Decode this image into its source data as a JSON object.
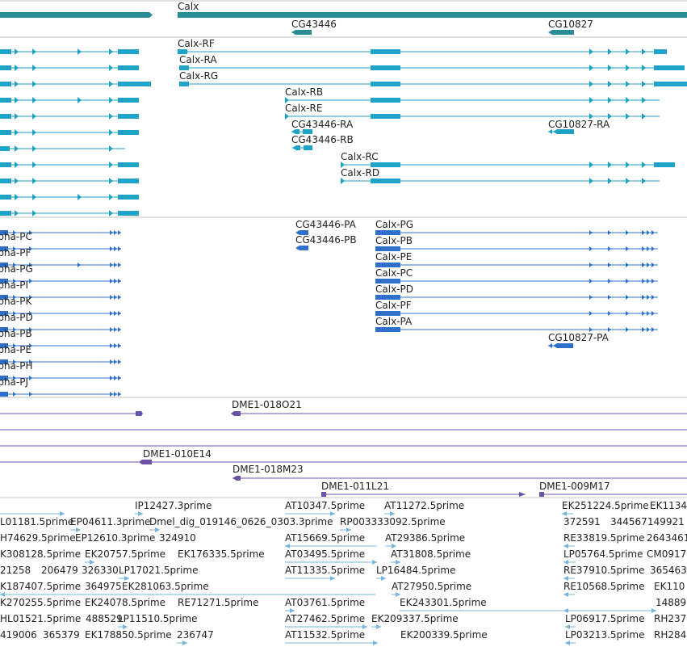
{
  "colors": {
    "gene": "#2a8c94",
    "mrna": "#1ea3c7",
    "protein": "#2f6fcc",
    "clone": "#6b52a8",
    "est": "#78b4dc",
    "divider": "#c0c0c0"
  },
  "genes": {
    "calx": "Calx",
    "cg43446": "CG43446",
    "cg10827": "CG10827"
  },
  "transcripts": {
    "calx_rf": "Calx-RF",
    "calx_ra": "Calx-RA",
    "calx_rg": "Calx-RG",
    "calx_rb": "Calx-RB",
    "calx_re": "Calx-RE",
    "cg43446_ra": "CG43446-RA",
    "cg43446_rb": "CG43446-RB",
    "cg10827_ra": "CG10827-RA",
    "calx_rc": "Calx-RC",
    "calx_rd": "Calx-RD"
  },
  "proteins": {
    "left": [
      "lpha-PC",
      "lpha-PF",
      "lpha-PG",
      "lpha-PI",
      "lpha-PK",
      "lpha-PD",
      "lpha-PB",
      "lpha-PE",
      "lpha-PH",
      "lpha-PJ"
    ],
    "cg43446_pa": "CG43446-PA",
    "cg43446_pb": "CG43446-PB",
    "calx": [
      "Calx-PG",
      "Calx-PB",
      "Calx-PE",
      "Calx-PC",
      "Calx-PD",
      "Calx-PF",
      "Calx-PA"
    ],
    "cg10827_pa": "CG10827-PA"
  },
  "clones": {
    "c1": "DME1-018O21",
    "c2": "DME1-010E14",
    "c3": "DME1-018M23",
    "c4": "DME1-011L21",
    "c5": "DME1-009M17"
  },
  "ests": {
    "r0": [
      "IP12427.3prime",
      "AT10347.5prime",
      "AT11272.5prime",
      "EK251224.5prime",
      "EK1134"
    ],
    "r1": [
      "L01181.5prime",
      "EP04611.3prime",
      "Dmel_dig_019146_0626_0303.3prime",
      "RP003333092.5prime",
      "372591",
      "344567",
      "149921"
    ],
    "r2": [
      "H74629.5prime",
      "EP12610.3prime",
      "324910",
      "AT15669.5prime",
      "AT29386.5prime",
      "RE33819.5prime",
      "2643461"
    ],
    "r3": [
      "K308128.5prime",
      "EK20757.5prime",
      "EK176335.5prime",
      "AT03495.5prime",
      "AT31808.5prime",
      "LP05764.5prime",
      "CM0917"
    ],
    "r4": [
      "21258",
      "206479",
      "326330",
      "LP17021.5prime",
      "AT11335.5prime",
      "LP16484.5prime",
      "RE37910.5prime",
      "365463"
    ],
    "r5": [
      "K187407.5prime",
      "364975",
      "EK281063.5prime",
      "AT27950.5prime",
      "RE10568.5prime",
      "EK110"
    ],
    "r6": [
      "K270255.5prime",
      "EK24078.5prime",
      "RE71271.5prime",
      "AT03761.5prime",
      "EK243301.5prime",
      "14889"
    ],
    "r7": [
      "HL01521.5prime",
      "488529",
      "LP11510.5prime",
      "AT27462.5prime",
      "EK209337.5prime",
      "LP06917.5prime",
      "RH237"
    ],
    "r8": [
      "419006",
      "365379",
      "EK178850.5prime",
      "236747",
      "AT11532.5prime",
      "EK200339.5prime",
      "LP03213.5prime",
      "RH284"
    ]
  }
}
